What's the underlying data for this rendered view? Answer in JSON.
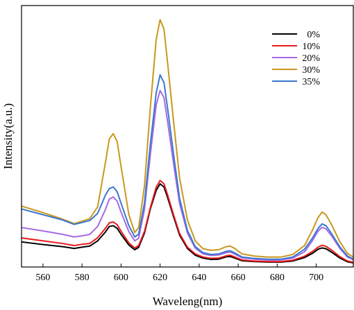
{
  "chart_data": {
    "type": "line",
    "title": "",
    "xlabel": "Waveleng(nm)",
    "ylabel": "Intensity(a.u.)",
    "xlim": [
      549,
      719
    ],
    "ylim": [
      0,
      1
    ],
    "xticks": [
      560,
      580,
      600,
      620,
      640,
      660,
      680,
      700
    ],
    "yticks_shown": false,
    "grid": false,
    "legend_position": "top-right",
    "series": [
      {
        "name": "0%",
        "color": "#000000",
        "points": [
          [
            549,
            0.096
          ],
          [
            560,
            0.086
          ],
          [
            570,
            0.078
          ],
          [
            576,
            0.071
          ],
          [
            580,
            0.076
          ],
          [
            584,
            0.08
          ],
          [
            588,
            0.1
          ],
          [
            592,
            0.134
          ],
          [
            594,
            0.155
          ],
          [
            596,
            0.158
          ],
          [
            598,
            0.148
          ],
          [
            600,
            0.125
          ],
          [
            604,
            0.084
          ],
          [
            607,
            0.066
          ],
          [
            609,
            0.075
          ],
          [
            612,
            0.13
          ],
          [
            615,
            0.222
          ],
          [
            618,
            0.293
          ],
          [
            620,
            0.318
          ],
          [
            622,
            0.306
          ],
          [
            624,
            0.262
          ],
          [
            627,
            0.19
          ],
          [
            630,
            0.122
          ],
          [
            634,
            0.071
          ],
          [
            638,
            0.045
          ],
          [
            642,
            0.034
          ],
          [
            646,
            0.029
          ],
          [
            650,
            0.03
          ],
          [
            654,
            0.039
          ],
          [
            656,
            0.04
          ],
          [
            658,
            0.035
          ],
          [
            662,
            0.024
          ],
          [
            668,
            0.021
          ],
          [
            675,
            0.019
          ],
          [
            682,
            0.019
          ],
          [
            688,
            0.023
          ],
          [
            694,
            0.036
          ],
          [
            698,
            0.052
          ],
          [
            701,
            0.068
          ],
          [
            703,
            0.073
          ],
          [
            705,
            0.07
          ],
          [
            708,
            0.056
          ],
          [
            712,
            0.035
          ],
          [
            716,
            0.02
          ],
          [
            719,
            0.016
          ]
        ]
      },
      {
        "name": "10%",
        "color": "#e8191c",
        "points": [
          [
            549,
            0.111
          ],
          [
            560,
            0.1
          ],
          [
            570,
            0.09
          ],
          [
            576,
            0.082
          ],
          [
            580,
            0.087
          ],
          [
            584,
            0.09
          ],
          [
            588,
            0.112
          ],
          [
            592,
            0.148
          ],
          [
            594,
            0.169
          ],
          [
            596,
            0.172
          ],
          [
            598,
            0.162
          ],
          [
            600,
            0.137
          ],
          [
            604,
            0.092
          ],
          [
            607,
            0.073
          ],
          [
            609,
            0.082
          ],
          [
            612,
            0.136
          ],
          [
            615,
            0.227
          ],
          [
            618,
            0.305
          ],
          [
            620,
            0.331
          ],
          [
            622,
            0.318
          ],
          [
            624,
            0.272
          ],
          [
            627,
            0.197
          ],
          [
            630,
            0.128
          ],
          [
            634,
            0.076
          ],
          [
            638,
            0.05
          ],
          [
            642,
            0.038
          ],
          [
            646,
            0.033
          ],
          [
            650,
            0.034
          ],
          [
            654,
            0.043
          ],
          [
            656,
            0.045
          ],
          [
            658,
            0.039
          ],
          [
            662,
            0.027
          ],
          [
            668,
            0.023
          ],
          [
            675,
            0.021
          ],
          [
            682,
            0.021
          ],
          [
            688,
            0.026
          ],
          [
            694,
            0.041
          ],
          [
            698,
            0.059
          ],
          [
            701,
            0.076
          ],
          [
            703,
            0.083
          ],
          [
            705,
            0.079
          ],
          [
            708,
            0.064
          ],
          [
            712,
            0.04
          ],
          [
            716,
            0.023
          ],
          [
            719,
            0.018
          ]
        ]
      },
      {
        "name": "20%",
        "color": "#a669e3",
        "points": [
          [
            549,
            0.151
          ],
          [
            560,
            0.138
          ],
          [
            570,
            0.125
          ],
          [
            576,
            0.115
          ],
          [
            580,
            0.119
          ],
          [
            584,
            0.125
          ],
          [
            588,
            0.155
          ],
          [
            592,
            0.22
          ],
          [
            594,
            0.26
          ],
          [
            596,
            0.268
          ],
          [
            598,
            0.252
          ],
          [
            600,
            0.21
          ],
          [
            604,
            0.135
          ],
          [
            607,
            0.1
          ],
          [
            609,
            0.11
          ],
          [
            612,
            0.22
          ],
          [
            615,
            0.43
          ],
          [
            618,
            0.62
          ],
          [
            620,
            0.675
          ],
          [
            622,
            0.648
          ],
          [
            624,
            0.548
          ],
          [
            627,
            0.39
          ],
          [
            630,
            0.242
          ],
          [
            634,
            0.13
          ],
          [
            638,
            0.072
          ],
          [
            642,
            0.05
          ],
          [
            646,
            0.044
          ],
          [
            650,
            0.046
          ],
          [
            654,
            0.055
          ],
          [
            656,
            0.057
          ],
          [
            658,
            0.05
          ],
          [
            662,
            0.035
          ],
          [
            668,
            0.03
          ],
          [
            675,
            0.027
          ],
          [
            682,
            0.027
          ],
          [
            688,
            0.034
          ],
          [
            694,
            0.058
          ],
          [
            698,
            0.1
          ],
          [
            701,
            0.138
          ],
          [
            703,
            0.152
          ],
          [
            705,
            0.146
          ],
          [
            708,
            0.118
          ],
          [
            712,
            0.072
          ],
          [
            716,
            0.038
          ],
          [
            719,
            0.028
          ]
        ]
      },
      {
        "name": "30%",
        "color": "#c9971c",
        "points": [
          [
            549,
            0.233
          ],
          [
            560,
            0.208
          ],
          [
            570,
            0.183
          ],
          [
            576,
            0.166
          ],
          [
            580,
            0.175
          ],
          [
            584,
            0.185
          ],
          [
            588,
            0.23
          ],
          [
            592,
            0.4
          ],
          [
            594,
            0.49
          ],
          [
            596,
            0.51
          ],
          [
            598,
            0.48
          ],
          [
            600,
            0.385
          ],
          [
            604,
            0.2
          ],
          [
            607,
            0.132
          ],
          [
            609,
            0.15
          ],
          [
            612,
            0.31
          ],
          [
            615,
            0.61
          ],
          [
            618,
            0.87
          ],
          [
            620,
            0.946
          ],
          [
            622,
            0.91
          ],
          [
            624,
            0.77
          ],
          [
            627,
            0.55
          ],
          [
            630,
            0.34
          ],
          [
            634,
            0.18
          ],
          [
            638,
            0.1
          ],
          [
            642,
            0.07
          ],
          [
            646,
            0.064
          ],
          [
            650,
            0.066
          ],
          [
            654,
            0.078
          ],
          [
            656,
            0.08
          ],
          [
            658,
            0.072
          ],
          [
            662,
            0.05
          ],
          [
            668,
            0.042
          ],
          [
            675,
            0.038
          ],
          [
            682,
            0.038
          ],
          [
            688,
            0.048
          ],
          [
            694,
            0.082
          ],
          [
            698,
            0.14
          ],
          [
            701,
            0.19
          ],
          [
            703,
            0.21
          ],
          [
            705,
            0.2
          ],
          [
            708,
            0.16
          ],
          [
            712,
            0.098
          ],
          [
            716,
            0.052
          ],
          [
            719,
            0.038
          ]
        ]
      },
      {
        "name": "35%",
        "color": "#3a78d0",
        "points": [
          [
            549,
            0.222
          ],
          [
            560,
            0.2
          ],
          [
            570,
            0.18
          ],
          [
            576,
            0.163
          ],
          [
            580,
            0.17
          ],
          [
            584,
            0.178
          ],
          [
            588,
            0.205
          ],
          [
            592,
            0.275
          ],
          [
            594,
            0.3
          ],
          [
            596,
            0.306
          ],
          [
            598,
            0.288
          ],
          [
            600,
            0.244
          ],
          [
            604,
            0.158
          ],
          [
            607,
            0.115
          ],
          [
            609,
            0.125
          ],
          [
            612,
            0.245
          ],
          [
            615,
            0.47
          ],
          [
            618,
            0.665
          ],
          [
            620,
            0.735
          ],
          [
            622,
            0.705
          ],
          [
            624,
            0.598
          ],
          [
            627,
            0.425
          ],
          [
            630,
            0.262
          ],
          [
            634,
            0.14
          ],
          [
            638,
            0.078
          ],
          [
            642,
            0.055
          ],
          [
            646,
            0.048
          ],
          [
            650,
            0.05
          ],
          [
            654,
            0.06
          ],
          [
            656,
            0.062
          ],
          [
            658,
            0.055
          ],
          [
            662,
            0.038
          ],
          [
            668,
            0.033
          ],
          [
            675,
            0.03
          ],
          [
            682,
            0.03
          ],
          [
            688,
            0.038
          ],
          [
            694,
            0.068
          ],
          [
            698,
            0.11
          ],
          [
            701,
            0.148
          ],
          [
            703,
            0.165
          ],
          [
            705,
            0.158
          ],
          [
            708,
            0.126
          ],
          [
            712,
            0.078
          ],
          [
            716,
            0.042
          ],
          [
            719,
            0.03
          ]
        ]
      }
    ]
  }
}
